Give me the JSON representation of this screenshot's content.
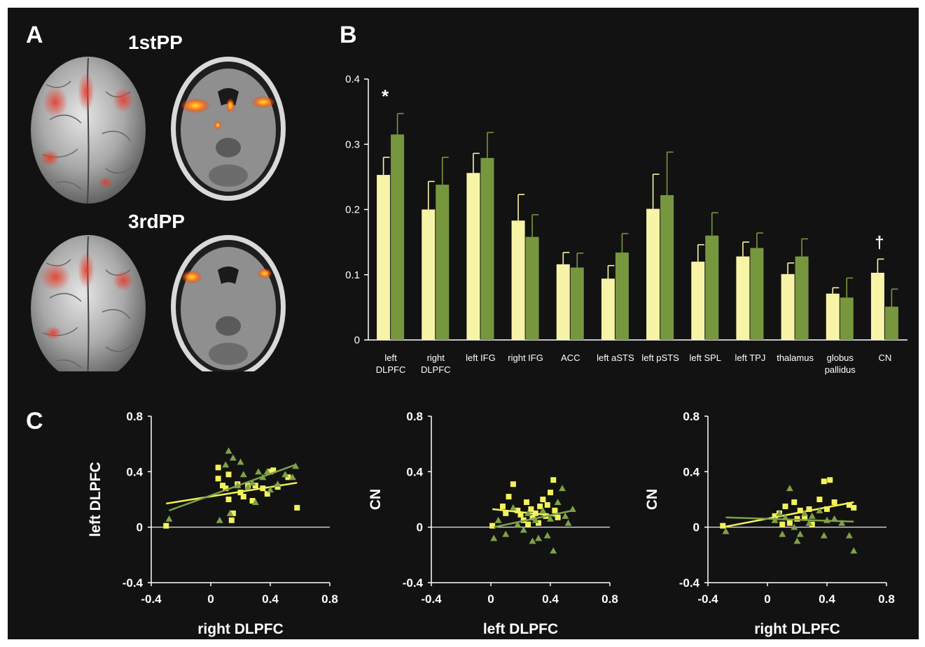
{
  "panel_A": {
    "letter": "A",
    "rows": [
      {
        "label": "1stPP"
      },
      {
        "label": "3rdPP"
      }
    ]
  },
  "panel_B": {
    "letter": "B"
  },
  "panel_C": {
    "letter": "C"
  },
  "colors": {
    "yellow": "#f7f4a8",
    "green": "#77973f",
    "axis": "#ffffff",
    "background": "#121212",
    "sc_yellow": "#f2f25c",
    "sc_green": "#7fa048"
  },
  "chart_data": [
    {
      "type": "bar",
      "categories": [
        "left DLPFC",
        "right DLPFC",
        "left IFG",
        "right IFG",
        "ACC",
        "left aSTS",
        "left pSTS",
        "left SPL",
        "left TPJ",
        "thalamus",
        "globus pallidus",
        "CN"
      ],
      "category_lines": [
        [
          "left",
          "DLPFC"
        ],
        [
          "right",
          "DLPFC"
        ],
        [
          "left IFG"
        ],
        [
          "right IFG"
        ],
        [
          "ACC"
        ],
        [
          "left aSTS"
        ],
        [
          "left pSTS"
        ],
        [
          "left SPL"
        ],
        [
          "left TPJ"
        ],
        [
          "thalamus"
        ],
        [
          "globus",
          "pallidus"
        ],
        [
          "CN"
        ]
      ],
      "series": [
        {
          "values": [
            0.253,
            0.2,
            0.256,
            0.183,
            0.116,
            0.094,
            0.201,
            0.12,
            0.128,
            0.101,
            0.071,
            0.103
          ],
          "errors": [
            0.027,
            0.043,
            0.03,
            0.04,
            0.018,
            0.02,
            0.053,
            0.026,
            0.022,
            0.017,
            0.009,
            0.021
          ]
        },
        {
          "values": [
            0.315,
            0.238,
            0.279,
            0.158,
            0.111,
            0.134,
            0.222,
            0.16,
            0.141,
            0.128,
            0.065,
            0.051
          ],
          "errors": [
            0.032,
            0.042,
            0.039,
            0.034,
            0.022,
            0.029,
            0.066,
            0.035,
            0.023,
            0.027,
            0.03,
            0.027
          ]
        }
      ],
      "yticks": [
        "0",
        "0.1",
        "0.2",
        "0.3",
        "0.4"
      ],
      "ylim": [
        0,
        0.4
      ],
      "annotations": [
        {
          "category": "left DLPFC",
          "text": "*"
        },
        {
          "category": "CN",
          "text": "†"
        }
      ]
    },
    {
      "type": "scatter",
      "xlabel": "right DLPFC",
      "ylabel": "left DLPFC",
      "xlim": [
        -0.4,
        0.8
      ],
      "ylim": [
        -0.4,
        0.8
      ],
      "xticks": [
        "-0.4",
        "0",
        "0.4",
        "0.8"
      ],
      "yticks": [
        "-0.4",
        "0",
        "0.4",
        "0.8"
      ],
      "series": [
        {
          "marker": "square",
          "color_key": "sc_yellow",
          "points": [
            [
              -0.3,
              0.01
            ],
            [
              0.05,
              0.43
            ],
            [
              0.05,
              0.35
            ],
            [
              0.08,
              0.3
            ],
            [
              0.1,
              0.28
            ],
            [
              0.12,
              0.38
            ],
            [
              0.12,
              0.2
            ],
            [
              0.15,
              0.1
            ],
            [
              0.14,
              0.05
            ],
            [
              0.18,
              0.31
            ],
            [
              0.2,
              0.25
            ],
            [
              0.22,
              0.22
            ],
            [
              0.25,
              0.3
            ],
            [
              0.28,
              0.19
            ],
            [
              0.3,
              0.3
            ],
            [
              0.35,
              0.28
            ],
            [
              0.38,
              0.24
            ],
            [
              0.4,
              0.4
            ],
            [
              0.42,
              0.41
            ],
            [
              0.45,
              0.29
            ],
            [
              0.52,
              0.36
            ],
            [
              0.58,
              0.14
            ]
          ],
          "fit": [
            [
              -0.3,
              0.17
            ],
            [
              0.58,
              0.32
            ]
          ]
        },
        {
          "marker": "triangle",
          "color_key": "sc_green",
          "points": [
            [
              -0.28,
              0.06
            ],
            [
              0.06,
              0.05
            ],
            [
              0.1,
              0.45
            ],
            [
              0.12,
              0.55
            ],
            [
              0.13,
              0.1
            ],
            [
              0.15,
              0.5
            ],
            [
              0.18,
              0.3
            ],
            [
              0.2,
              0.47
            ],
            [
              0.22,
              0.38
            ],
            [
              0.25,
              0.29
            ],
            [
              0.28,
              0.32
            ],
            [
              0.3,
              0.18
            ],
            [
              0.32,
              0.4
            ],
            [
              0.35,
              0.36
            ],
            [
              0.38,
              0.4
            ],
            [
              0.4,
              0.27
            ],
            [
              0.45,
              0.31
            ],
            [
              0.5,
              0.38
            ],
            [
              0.55,
              0.36
            ],
            [
              0.57,
              0.44
            ]
          ],
          "fit": [
            [
              -0.28,
              0.12
            ],
            [
              0.57,
              0.45
            ]
          ]
        }
      ]
    },
    {
      "type": "scatter",
      "xlabel": "left DLPFC",
      "ylabel": "CN",
      "xlim": [
        -0.4,
        0.8
      ],
      "ylim": [
        -0.4,
        0.8
      ],
      "xticks": [
        "-0.4",
        "0",
        "0.4",
        "0.8"
      ],
      "yticks": [
        "-0.4",
        "0",
        "0.4",
        "0.8"
      ],
      "series": [
        {
          "marker": "square",
          "color_key": "sc_yellow",
          "points": [
            [
              0.01,
              0.01
            ],
            [
              0.08,
              0.15
            ],
            [
              0.1,
              0.1
            ],
            [
              0.12,
              0.22
            ],
            [
              0.15,
              0.31
            ],
            [
              0.18,
              0.12
            ],
            [
              0.2,
              0.09
            ],
            [
              0.22,
              0.05
            ],
            [
              0.24,
              0.18
            ],
            [
              0.25,
              0.02
            ],
            [
              0.27,
              0.13
            ],
            [
              0.28,
              0.07
            ],
            [
              0.3,
              0.1
            ],
            [
              0.32,
              0.03
            ],
            [
              0.33,
              0.15
            ],
            [
              0.35,
              0.2
            ],
            [
              0.37,
              0.08
            ],
            [
              0.38,
              0.16
            ],
            [
              0.4,
              0.25
            ],
            [
              0.42,
              0.34
            ],
            [
              0.43,
              0.12
            ],
            [
              0.45,
              0.07
            ]
          ],
          "fit": [
            [
              0.01,
              0.13
            ],
            [
              0.45,
              0.08
            ]
          ]
        },
        {
          "marker": "triangle",
          "color_key": "sc_green",
          "points": [
            [
              0.02,
              -0.08
            ],
            [
              0.05,
              0.05
            ],
            [
              0.1,
              -0.05
            ],
            [
              0.15,
              0.14
            ],
            [
              0.18,
              0.02
            ],
            [
              0.22,
              -0.02
            ],
            [
              0.25,
              0.1
            ],
            [
              0.28,
              -0.1
            ],
            [
              0.3,
              0.05
            ],
            [
              0.32,
              -0.08
            ],
            [
              0.35,
              0.12
            ],
            [
              0.38,
              -0.06
            ],
            [
              0.4,
              0.06
            ],
            [
              0.42,
              -0.17
            ],
            [
              0.45,
              0.18
            ],
            [
              0.48,
              0.28
            ],
            [
              0.5,
              0.08
            ],
            [
              0.52,
              0.03
            ],
            [
              0.55,
              0.13
            ]
          ],
          "fit": [
            [
              0.02,
              0.0
            ],
            [
              0.55,
              0.12
            ]
          ]
        }
      ]
    },
    {
      "type": "scatter",
      "xlabel": "right DLPFC",
      "ylabel": "CN",
      "xlim": [
        -0.4,
        0.8
      ],
      "ylim": [
        -0.4,
        0.8
      ],
      "xticks": [
        "-0.4",
        "0",
        "0.4",
        "0.8"
      ],
      "yticks": [
        "-0.4",
        "0",
        "0.4",
        "0.8"
      ],
      "series": [
        {
          "marker": "square",
          "color_key": "sc_yellow",
          "points": [
            [
              -0.3,
              0.01
            ],
            [
              0.05,
              0.08
            ],
            [
              0.08,
              0.1
            ],
            [
              0.1,
              0.02
            ],
            [
              0.12,
              0.15
            ],
            [
              0.15,
              0.03
            ],
            [
              0.18,
              0.18
            ],
            [
              0.2,
              0.06
            ],
            [
              0.22,
              0.12
            ],
            [
              0.25,
              0.07
            ],
            [
              0.28,
              0.13
            ],
            [
              0.3,
              0.02
            ],
            [
              0.35,
              0.2
            ],
            [
              0.38,
              0.33
            ],
            [
              0.4,
              0.13
            ],
            [
              0.42,
              0.34
            ],
            [
              0.45,
              0.18
            ],
            [
              0.55,
              0.16
            ],
            [
              0.58,
              0.14
            ]
          ],
          "fit": [
            [
              -0.3,
              0.0
            ],
            [
              0.58,
              0.18
            ]
          ]
        },
        {
          "marker": "triangle",
          "color_key": "sc_green",
          "points": [
            [
              -0.28,
              -0.03
            ],
            [
              0.05,
              0.05
            ],
            [
              0.08,
              0.1
            ],
            [
              0.1,
              -0.05
            ],
            [
              0.12,
              0.07
            ],
            [
              0.15,
              0.28
            ],
            [
              0.18,
              0.0
            ],
            [
              0.2,
              -0.1
            ],
            [
              0.22,
              -0.05
            ],
            [
              0.25,
              0.1
            ],
            [
              0.28,
              0.03
            ],
            [
              0.3,
              0.08
            ],
            [
              0.35,
              0.12
            ],
            [
              0.38,
              -0.06
            ],
            [
              0.4,
              0.05
            ],
            [
              0.45,
              0.06
            ],
            [
              0.5,
              0.03
            ],
            [
              0.55,
              -0.06
            ],
            [
              0.58,
              -0.17
            ]
          ],
          "fit": [
            [
              -0.28,
              0.07
            ],
            [
              0.58,
              0.04
            ]
          ]
        }
      ]
    }
  ]
}
